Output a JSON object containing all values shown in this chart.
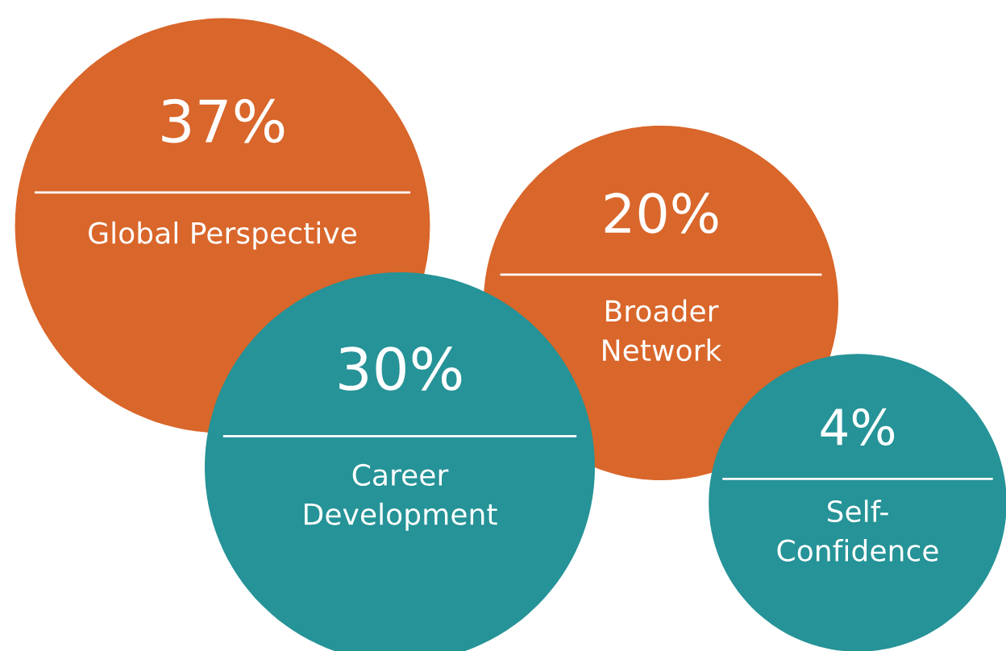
{
  "chart_data": {
    "type": "other",
    "categories": [
      "Global Perspective",
      "Broader\nNetwork",
      "Career\nDevelopment",
      "Self-\nConfidence"
    ],
    "values": [
      37,
      20,
      30,
      4
    ],
    "value_labels": [
      "37%",
      "20%",
      "30%",
      "4%"
    ],
    "colors": [
      "#d9662a",
      "#d9662a",
      "#259397",
      "#259397"
    ]
  }
}
